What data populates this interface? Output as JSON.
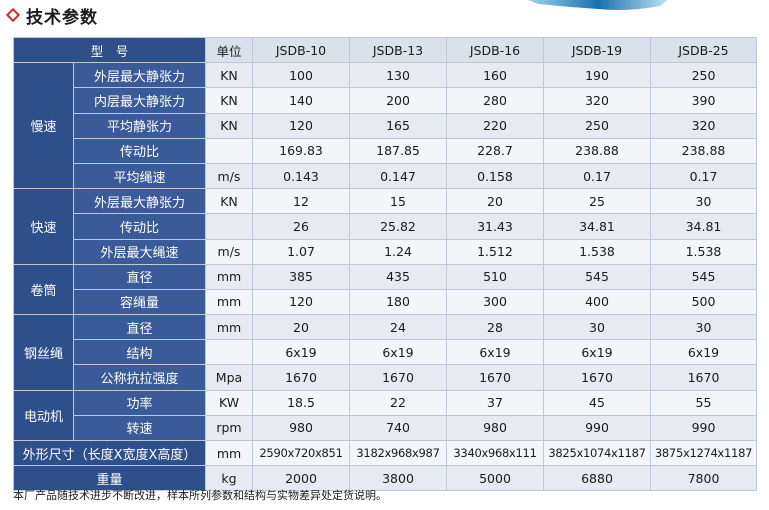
{
  "heading": {
    "title": "技术参数"
  },
  "table": {
    "header": {
      "label": "型　号",
      "unit_label": "单位",
      "models": [
        "JSDB-10",
        "JSDB-13",
        "JSDB-16",
        "JSDB-19",
        "JSDB-25"
      ]
    },
    "groups": [
      {
        "name": "慢速",
        "rows": [
          {
            "param": "外层最大静张力",
            "unit": "KN",
            "values": [
              "100",
              "130",
              "160",
              "190",
              "250"
            ]
          },
          {
            "param": "内层最大静张力",
            "unit": "KN",
            "values": [
              "140",
              "200",
              "280",
              "320",
              "390"
            ]
          },
          {
            "param": "平均静张力",
            "unit": "KN",
            "values": [
              "120",
              "165",
              "220",
              "250",
              "320"
            ]
          },
          {
            "param": "传动比",
            "unit": "",
            "values": [
              "169.83",
              "187.85",
              "228.7",
              "238.88",
              "238.88"
            ]
          },
          {
            "param": "平均绳速",
            "unit": "m/s",
            "values": [
              "0.143",
              "0.147",
              "0.158",
              "0.17",
              "0.17"
            ]
          }
        ]
      },
      {
        "name": "快速",
        "rows": [
          {
            "param": "外层最大静张力",
            "unit": "KN",
            "values": [
              "12",
              "15",
              "20",
              "25",
              "30"
            ]
          },
          {
            "param": "传动比",
            "unit": "",
            "values": [
              "26",
              "25.82",
              "31.43",
              "34.81",
              "34.81"
            ]
          },
          {
            "param": "外层最大绳速",
            "unit": "m/s",
            "values": [
              "1.07",
              "1.24",
              "1.512",
              "1.538",
              "1.538"
            ]
          }
        ]
      },
      {
        "name": "卷筒",
        "rows": [
          {
            "param": "直径",
            "unit": "mm",
            "values": [
              "385",
              "435",
              "510",
              "545",
              "545"
            ]
          },
          {
            "param": "容绳量",
            "unit": "mm",
            "values": [
              "120",
              "180",
              "300",
              "400",
              "500"
            ]
          }
        ]
      },
      {
        "name": "钢丝绳",
        "rows": [
          {
            "param": "直径",
            "unit": "mm",
            "values": [
              "20",
              "24",
              "28",
              "30",
              "30"
            ]
          },
          {
            "param": "结构",
            "unit": "",
            "values": [
              "6x19",
              "6x19",
              "6x19",
              "6x19",
              "6x19"
            ]
          },
          {
            "param": "公称抗拉强度",
            "unit": "Mpa",
            "values": [
              "1670",
              "1670",
              "1670",
              "1670",
              "1670"
            ]
          }
        ]
      },
      {
        "name": "电动机",
        "rows": [
          {
            "param": "功率",
            "unit": "KW",
            "values": [
              "18.5",
              "22",
              "37",
              "45",
              "55"
            ]
          },
          {
            "param": "转速",
            "unit": "rpm",
            "values": [
              "980",
              "740",
              "980",
              "990",
              "990"
            ]
          }
        ]
      }
    ],
    "dimensions": {
      "label": "外形尺寸（长度X宽度X高度）",
      "unit": "mm",
      "values": [
        "2590x720x851",
        "3182x968x987",
        "3340x968x111",
        "3825x1074x1187",
        "3875x1274x1187"
      ]
    },
    "weight": {
      "label": "重量",
      "unit": "kg",
      "values": [
        "2000",
        "3800",
        "5000",
        "6880",
        "7800"
      ]
    }
  },
  "note": "本厂产品随技术进步不断改进，样本所列参数和结构与实物差异处定货说明。",
  "colors": {
    "header_bg": "#2f4f8a",
    "cell_bg": "#f3f5f8",
    "accent": "#d42a2a"
  }
}
